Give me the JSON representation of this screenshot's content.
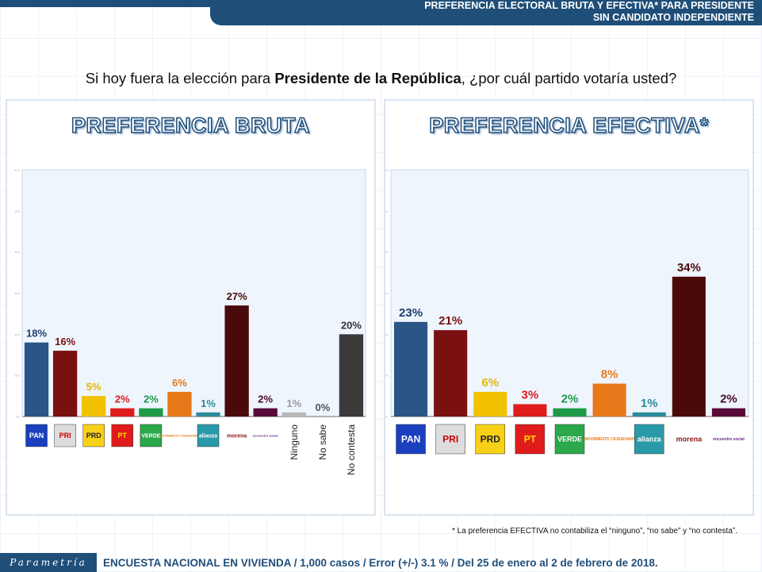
{
  "header": {
    "title_line1": "PREFERENCIA ELECTORAL BRUTA Y EFECTIVA* PARA PRESIDENTE",
    "title_line2": "SIN CANDIDATO INDEPENDIENTE"
  },
  "question": {
    "pre": "Si hoy fuera la elección para ",
    "bold": "Presidente de la República",
    "post": ", ¿por cuál partido votaría usted?"
  },
  "footnote": "* La preferencia EFECTIVA no contabiliza el “ninguno”, “no sabe” y “no contesta”.",
  "footer": {
    "brand": "Parametría",
    "survey": "ENCUESTA NACIONAL EN VIVIENDA / 1,000 casos / Error (+/-) 3.1 % / Del 25 de enero al 2 de febrero de 2018."
  },
  "chart_data": [
    {
      "type": "bar",
      "title": "PREFERENCIA BRUTA",
      "ylim": [
        0,
        60
      ],
      "yticks": [
        "0%",
        "10%",
        "20%",
        "30%",
        "40%",
        "50%",
        "60%"
      ],
      "categories": [
        "PAN",
        "PRI",
        "PRD",
        "PT",
        "VERDE",
        "MOVIMIENTO CIUDADANO",
        "alianza",
        "morena",
        "encuentro social",
        "Ninguno",
        "No sabe",
        "No contesta"
      ],
      "values": [
        18,
        16,
        5,
        2,
        2,
        6,
        1,
        27,
        2,
        1,
        0,
        20
      ],
      "labels": [
        "18%",
        "16%",
        "5%",
        "2%",
        "2%",
        "6%",
        "1%",
        "27%",
        "2%",
        "1%",
        "0%",
        "20%"
      ],
      "colors": [
        "#2a5586",
        "#7b1010",
        "#f2c200",
        "#e01b1b",
        "#1e9a48",
        "#e8791a",
        "#2c8a9c",
        "#4a0a0a",
        "#5a0a3a",
        "#b8b8b8",
        "#999999",
        "#3a3a3a"
      ],
      "label_colors": [
        "#1f3f6e",
        "#7b1010",
        "#e6b800",
        "#e01b1b",
        "#1e9a48",
        "#e8791a",
        "#2c8a9c",
        "#4a0a0a",
        "#4a0a2a",
        "#999999",
        "#555555",
        "#333333"
      ]
    },
    {
      "type": "bar",
      "title": "PREFERENCIA EFECTIVA*",
      "ylim": [
        0,
        60
      ],
      "yticks": [
        "0%",
        "10%",
        "20%",
        "30%",
        "40%",
        "50%",
        "60%"
      ],
      "categories": [
        "PAN",
        "PRI",
        "PRD",
        "PT",
        "VERDE",
        "MOVIMIENTO CIUDADANO",
        "alianza",
        "morena",
        "encuentro social"
      ],
      "values": [
        23,
        21,
        6,
        3,
        2,
        8,
        1,
        34,
        2
      ],
      "labels": [
        "23%",
        "21%",
        "6%",
        "3%",
        "2%",
        "8%",
        "1%",
        "34%",
        "2%"
      ],
      "colors": [
        "#2a5586",
        "#7b1010",
        "#f2c200",
        "#e01b1b",
        "#1e9a48",
        "#e8791a",
        "#2c8a9c",
        "#4a0a0a",
        "#5a0a3a"
      ],
      "label_colors": [
        "#1f3f6e",
        "#7b1010",
        "#e6b800",
        "#e01b1b",
        "#1e9a48",
        "#e8791a",
        "#2c8a9c",
        "#4a0a0a",
        "#4a0a2a"
      ]
    }
  ]
}
